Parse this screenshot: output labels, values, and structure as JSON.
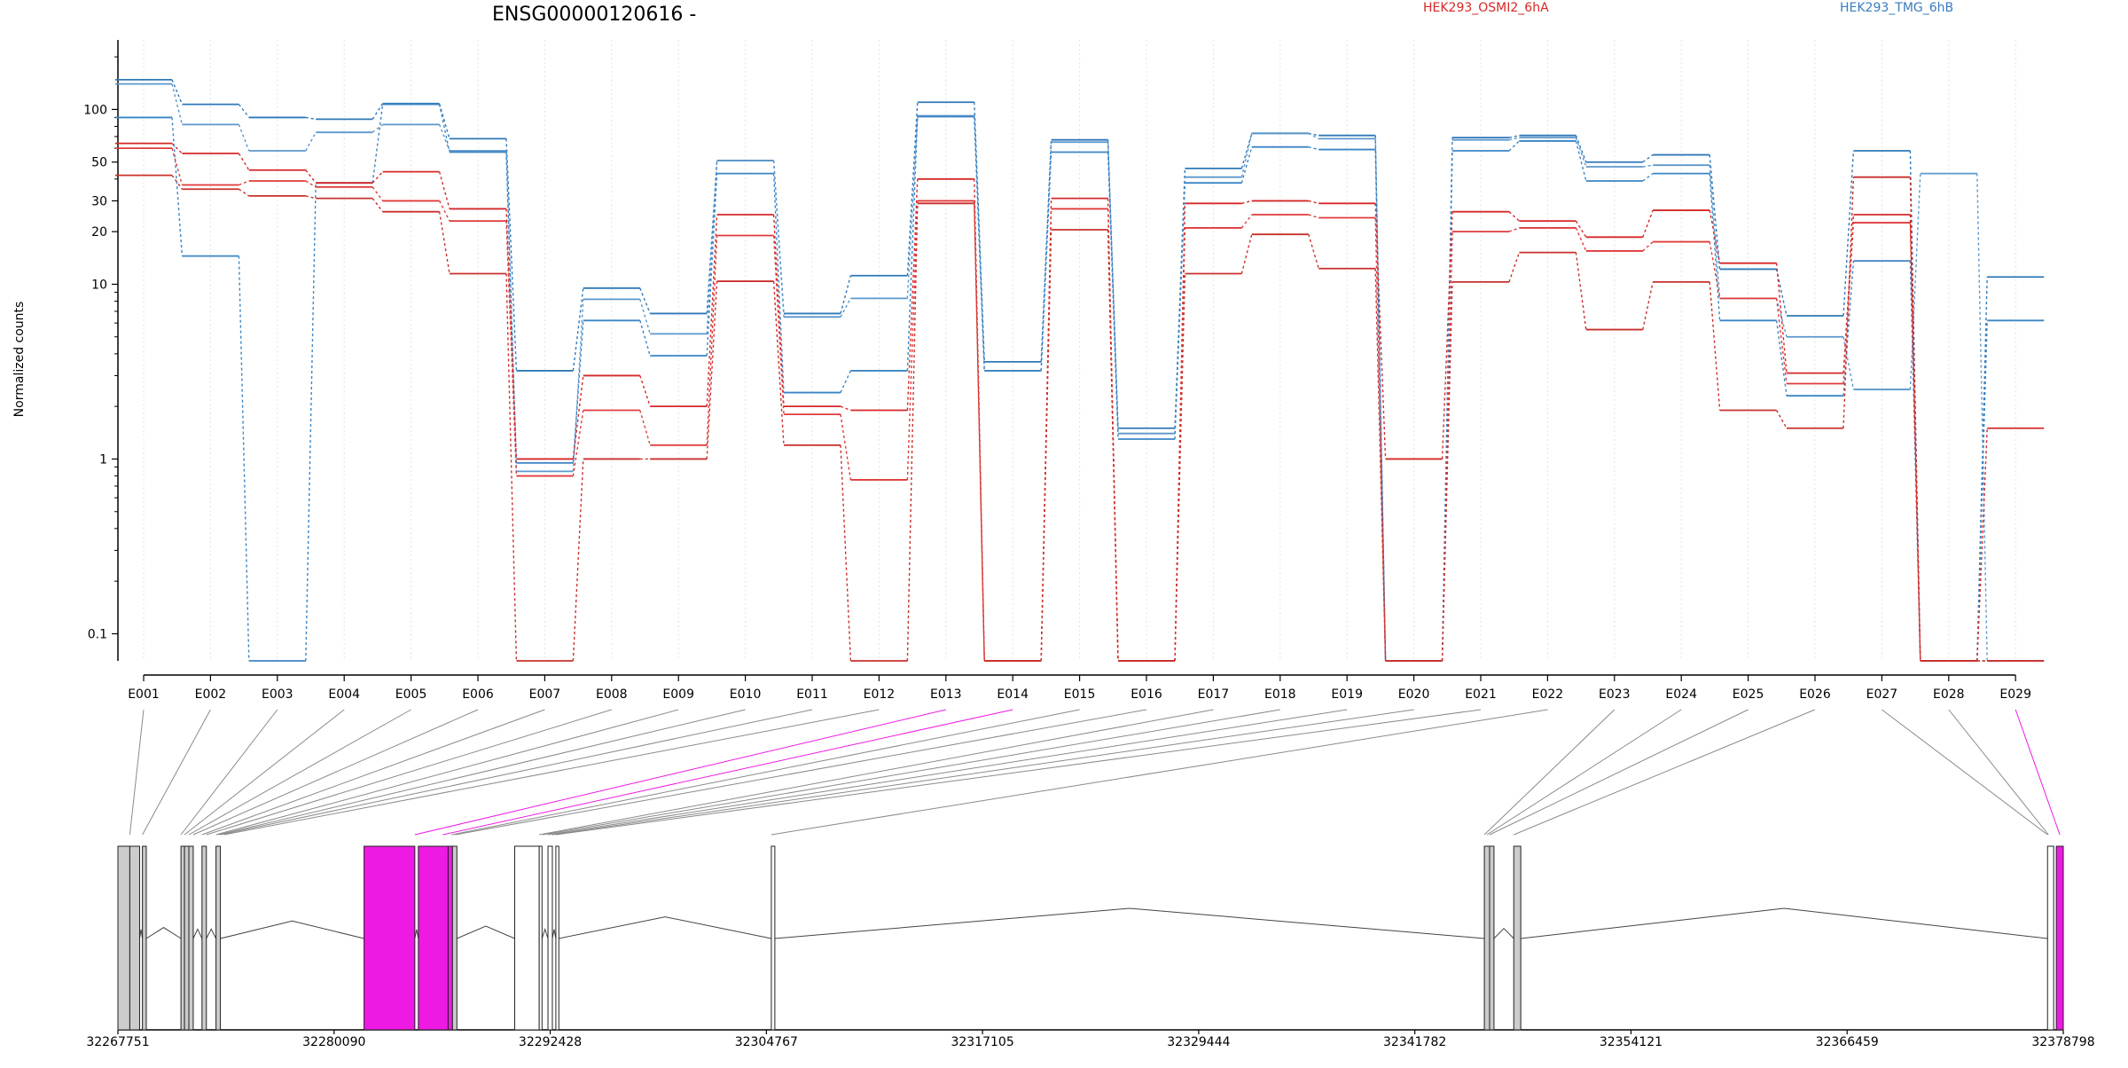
{
  "chart_data": {
    "type": "line",
    "title": "ENSG00000120616 -",
    "ylabel": "Normalized counts",
    "xlabel": "",
    "yscale": "log",
    "ylim": [
      0.07,
      250
    ],
    "y_ticks": [
      "0.1",
      "1",
      "10",
      "20",
      "30",
      "50",
      "100"
    ],
    "y_tick_values": [
      0.1,
      1,
      10,
      20,
      30,
      50,
      100
    ],
    "categories": [
      "E001",
      "E002",
      "E003",
      "E004",
      "E005",
      "E006",
      "E007",
      "E008",
      "E009",
      "E010",
      "E011",
      "E012",
      "E013",
      "E014",
      "E015",
      "E016",
      "E017",
      "E018",
      "E019",
      "E020",
      "E021",
      "E022",
      "E023",
      "E024",
      "E025",
      "E026",
      "E027",
      "E028",
      "E029"
    ],
    "legend": [
      {
        "label": "HEK293_OSMI2_6hA",
        "color": "#d62728"
      },
      {
        "label": "HEK293_TMG_6hB",
        "color": "#3a7bbf"
      }
    ],
    "series": [
      {
        "group": "TMG",
        "color": "#2f78b7",
        "values": [
          148,
          107,
          90,
          88,
          108,
          68,
          3.2,
          9.5,
          6.8,
          51,
          6.8,
          11.2,
          110,
          3.6,
          67,
          1.5,
          46,
          73,
          71,
          0.07,
          69,
          71,
          50,
          55,
          12.2,
          6.6,
          58,
          0.07,
          11
        ]
      },
      {
        "group": "TMG",
        "color": "#5b97cc",
        "values": [
          140,
          82,
          58,
          74,
          82,
          58,
          0.85,
          8.2,
          5.2,
          51,
          6.5,
          8.3,
          92,
          3.2,
          65,
          1.4,
          41,
          73,
          68,
          0.07,
          67,
          69,
          47,
          48,
          8.3,
          5.0,
          2.5,
          43,
          0.07
        ]
      },
      {
        "group": "TMG",
        "color": "#3a85c4",
        "values": [
          90,
          14.5,
          0.07,
          38,
          107,
          57,
          0.95,
          6.2,
          3.9,
          43,
          2.4,
          3.2,
          91,
          3.2,
          57,
          1.3,
          38,
          61,
          59,
          0.07,
          58,
          66,
          39,
          43,
          6.2,
          2.3,
          13.6,
          0.07,
          6.2
        ]
      },
      {
        "group": "OSMI2",
        "color": "#d62728",
        "values": [
          64,
          56,
          45,
          38,
          44,
          27,
          1.0,
          3.0,
          2.0,
          25,
          2.0,
          1.9,
          40,
          0.07,
          31,
          0.07,
          29,
          30,
          29,
          1.0,
          26,
          23,
          18.6,
          26.5,
          13.2,
          3.1,
          25,
          0.07,
          1.5
        ]
      },
      {
        "group": "OSMI2",
        "color": "#e03a3a",
        "values": [
          60,
          37,
          39,
          36,
          30,
          23,
          0.8,
          1.9,
          1.2,
          19,
          1.8,
          0.76,
          30,
          0.07,
          27,
          0.07,
          21,
          25,
          24,
          0.07,
          20,
          21,
          15.5,
          17.5,
          8.3,
          2.7,
          22.5,
          0.07,
          0.07
        ]
      },
      {
        "group": "OSMI2",
        "color": "#c9302c",
        "values": [
          42,
          35,
          32,
          31,
          26,
          11.5,
          0.07,
          1.0,
          1.0,
          10.4,
          1.2,
          0.07,
          29,
          0.07,
          20.5,
          0.07,
          11.5,
          19.3,
          12.3,
          0.07,
          10.3,
          15.2,
          5.5,
          10.3,
          1.9,
          1.5,
          41,
          0.07,
          0.07
        ]
      }
    ]
  },
  "gene_model": {
    "coordinate_labels": [
      "32267751",
      "32280090",
      "32292428",
      "32304767",
      "32317105",
      "32329444",
      "32341782",
      "32354121",
      "32366459",
      "32378798"
    ],
    "coordinates": [
      32267751,
      32280090,
      32292428,
      32304767,
      32317105,
      32329444,
      32341782,
      32354121,
      32366459,
      32378798
    ],
    "exon_genomic": [
      [
        32267751,
        32268430
      ],
      [
        32268430,
        32268990
      ],
      [
        32269150,
        32269370
      ],
      [
        32271350,
        32271550
      ],
      [
        32271550,
        32271800
      ],
      [
        32271800,
        32272050
      ],
      [
        32272550,
        32272800
      ],
      [
        32273350,
        32273600
      ],
      [
        32281800,
        32284700
      ],
      [
        32284900,
        32286600
      ],
      [
        32286600,
        32286850
      ],
      [
        32286850,
        32287100
      ],
      [
        32290400,
        32291800
      ],
      [
        32291800,
        32291960
      ],
      [
        32292300,
        32292550
      ],
      [
        32292750,
        32292920
      ],
      [
        32305050,
        32305250
      ],
      [
        32345750,
        32346050
      ],
      [
        32346050,
        32346300
      ],
      [
        32347430,
        32347830
      ],
      [
        32377900,
        32378250
      ],
      [
        32378400,
        32378798
      ]
    ],
    "exon_highlight": [
      false,
      false,
      false,
      false,
      false,
      false,
      false,
      false,
      true,
      true,
      true,
      false,
      false,
      false,
      false,
      false,
      false,
      false,
      false,
      false,
      false,
      true
    ],
    "exon_hollow": [
      false,
      false,
      false,
      false,
      false,
      false,
      false,
      false,
      false,
      false,
      false,
      false,
      true,
      true,
      true,
      true,
      true,
      false,
      false,
      false,
      true,
      false
    ],
    "bin_genomic": [
      32268430,
      32269150,
      32271350,
      32271550,
      32271800,
      32272050,
      32272550,
      32272800,
      32273350,
      32273500,
      32273600,
      32273800,
      32284700,
      32286300,
      32286800,
      32287000,
      32291800,
      32292000,
      32292300,
      32292550,
      32292750,
      32305050,
      32345750,
      32345900,
      32346050,
      32347430,
      32377900,
      32377950,
      32378600
    ],
    "bin_highlight": [
      false,
      false,
      false,
      false,
      false,
      false,
      false,
      false,
      false,
      false,
      false,
      false,
      true,
      true,
      false,
      false,
      false,
      false,
      false,
      false,
      false,
      false,
      false,
      false,
      false,
      false,
      false,
      false,
      true
    ],
    "highlight_color": "#ee1ae3"
  }
}
